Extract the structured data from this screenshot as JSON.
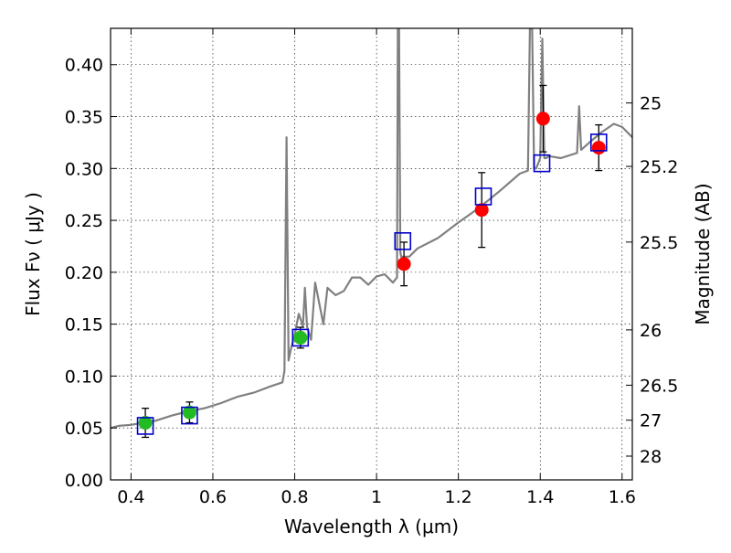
{
  "chart_data": {
    "type": "scatter",
    "title": "",
    "xlabel": "Wavelength  λ (μm)",
    "ylabel": "Flux  Fν  ( μJy )",
    "ylabel_right": "Magnitude (AB)",
    "xlim": [
      0.35,
      1.625
    ],
    "ylim": [
      0.0,
      0.435
    ],
    "grid": true,
    "colors": {
      "model_line": "#808080",
      "green_points": "#22bb22",
      "red_points": "#ff0000",
      "model_squares": "#0000cc",
      "error_bars": "#000000"
    },
    "x_ticks": [
      {
        "value": 0.4,
        "label": "0.4"
      },
      {
        "value": 0.6,
        "label": "0.6"
      },
      {
        "value": 0.8,
        "label": "0.8"
      },
      {
        "value": 1.0,
        "label": "1"
      },
      {
        "value": 1.2,
        "label": "1.2"
      },
      {
        "value": 1.4,
        "label": "1.4"
      },
      {
        "value": 1.6,
        "label": "1.6"
      }
    ],
    "y_ticks": [
      {
        "value": 0.0,
        "label": "0.00"
      },
      {
        "value": 0.05,
        "label": "0.05"
      },
      {
        "value": 0.1,
        "label": "0.10"
      },
      {
        "value": 0.15,
        "label": "0.15"
      },
      {
        "value": 0.2,
        "label": "0.20"
      },
      {
        "value": 0.25,
        "label": "0.25"
      },
      {
        "value": 0.3,
        "label": "0.30"
      },
      {
        "value": 0.35,
        "label": "0.35"
      },
      {
        "value": 0.4,
        "label": "0.40"
      }
    ],
    "right_ticks": [
      {
        "flux": 0.3631,
        "label": "25"
      },
      {
        "flux": 0.302,
        "label": "25.2"
      },
      {
        "flux": 0.2291,
        "label": "25.5"
      },
      {
        "flux": 0.1445,
        "label": "26"
      },
      {
        "flux": 0.0912,
        "label": "26.5"
      },
      {
        "flux": 0.0575,
        "label": "27"
      },
      {
        "flux": 0.0229,
        "label": "28"
      }
    ],
    "model_spectrum": {
      "x": [
        0.35,
        0.37,
        0.4,
        0.43,
        0.46,
        0.5,
        0.54,
        0.58,
        0.62,
        0.66,
        0.7,
        0.74,
        0.77,
        0.775,
        0.78,
        0.785,
        0.79,
        0.8,
        0.81,
        0.82,
        0.825,
        0.83,
        0.84,
        0.85,
        0.87,
        0.88,
        0.9,
        0.92,
        0.94,
        0.96,
        0.98,
        1.0,
        1.02,
        1.04,
        1.05,
        1.052,
        1.055,
        1.058,
        1.06,
        1.08,
        1.1,
        1.15,
        1.2,
        1.25,
        1.3,
        1.35,
        1.37,
        1.375,
        1.38,
        1.385,
        1.39,
        1.4,
        1.405,
        1.41,
        1.415,
        1.42,
        1.45,
        1.49,
        1.495,
        1.5,
        1.52,
        1.55,
        1.58,
        1.6,
        1.625
      ],
      "y": [
        0.05,
        0.052,
        0.053,
        0.055,
        0.057,
        0.062,
        0.066,
        0.069,
        0.074,
        0.08,
        0.084,
        0.09,
        0.094,
        0.105,
        0.33,
        0.115,
        0.125,
        0.14,
        0.16,
        0.148,
        0.185,
        0.148,
        0.135,
        0.19,
        0.15,
        0.185,
        0.178,
        0.182,
        0.195,
        0.195,
        0.188,
        0.196,
        0.198,
        0.19,
        0.195,
        0.44,
        0.44,
        0.22,
        0.215,
        0.215,
        0.223,
        0.233,
        0.248,
        0.262,
        0.278,
        0.295,
        0.298,
        0.44,
        0.44,
        0.3,
        0.3,
        0.31,
        0.425,
        0.31,
        0.31,
        0.312,
        0.31,
        0.315,
        0.36,
        0.318,
        0.325,
        0.335,
        0.343,
        0.34,
        0.33
      ]
    },
    "series": [
      {
        "marker": "circle-green",
        "x": [
          0.435,
          0.543,
          0.814
        ],
        "y": [
          0.055,
          0.065,
          0.137
        ],
        "yerr": [
          0.014,
          0.01,
          0.01
        ]
      },
      {
        "marker": "circle-red",
        "x": [
          1.067,
          1.257,
          1.407,
          1.543
        ],
        "y": [
          0.208,
          0.26,
          0.348,
          0.32
        ],
        "yerr": [
          0.021,
          0.036,
          0.032,
          0.022
        ]
      },
      {
        "marker": "square-blue",
        "x": [
          0.435,
          0.543,
          0.814,
          1.064,
          1.261,
          1.404,
          1.543
        ],
        "y": [
          0.052,
          0.062,
          0.137,
          0.23,
          0.273,
          0.305,
          0.325
        ]
      }
    ]
  }
}
